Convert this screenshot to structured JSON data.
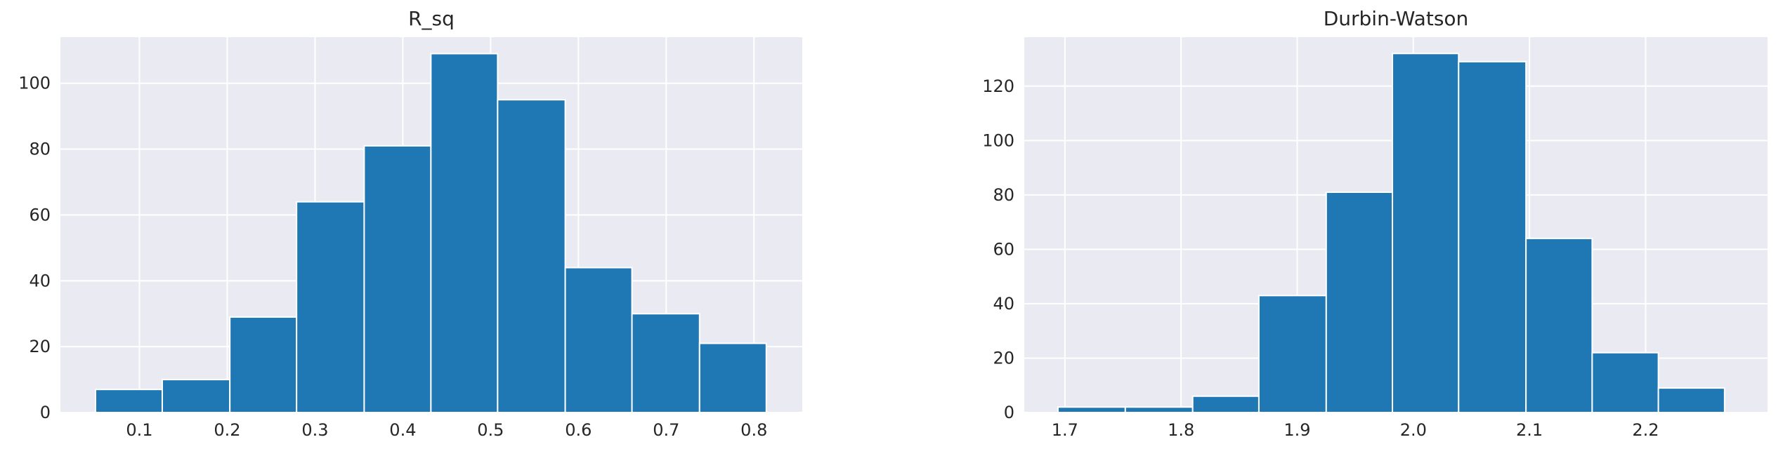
{
  "chart_data": [
    {
      "type": "bar",
      "title": "R_sq",
      "xlabel": "",
      "ylabel": "",
      "xlim": [
        0.01,
        0.855
      ],
      "ylim": [
        0,
        114
      ],
      "xticks": [
        0.1,
        0.2,
        0.3,
        0.4,
        0.5,
        0.6,
        0.7,
        0.8
      ],
      "xtick_labels": [
        "0.1",
        "0.2",
        "0.3",
        "0.4",
        "0.5",
        "0.6",
        "0.7",
        "0.8"
      ],
      "yticks": [
        0,
        20,
        40,
        60,
        80,
        100
      ],
      "ytick_labels": [
        "0",
        "20",
        "40",
        "60",
        "80",
        "100"
      ],
      "bin_edges": [
        0.05,
        0.126,
        0.203,
        0.279,
        0.356,
        0.432,
        0.508,
        0.585,
        0.661,
        0.738,
        0.814
      ],
      "counts": [
        7,
        10,
        29,
        64,
        81,
        109,
        95,
        44,
        30,
        21
      ],
      "bar_color": "#1f77b4",
      "grid": true,
      "background": "#eaeaf2"
    },
    {
      "type": "bar",
      "title": "Durbin-Watson",
      "xlabel": "",
      "ylabel": "",
      "xlim": [
        1.665,
        2.305
      ],
      "ylim": [
        0,
        138
      ],
      "xticks": [
        1.7,
        1.8,
        1.9,
        2.0,
        2.1,
        2.2
      ],
      "xtick_labels": [
        "1.7",
        "1.8",
        "1.9",
        "2.0",
        "2.1",
        "2.2"
      ],
      "yticks": [
        0,
        20,
        40,
        60,
        80,
        100,
        120
      ],
      "ytick_labels": [
        "0",
        "20",
        "40",
        "60",
        "80",
        "100",
        "120"
      ],
      "bin_edges": [
        1.694,
        1.752,
        1.81,
        1.867,
        1.925,
        1.982,
        2.039,
        2.097,
        2.154,
        2.211,
        2.268
      ],
      "counts": [
        2,
        2,
        6,
        43,
        81,
        132,
        129,
        64,
        22,
        9
      ],
      "bar_color": "#1f77b4",
      "grid": true,
      "background": "#eaeaf2"
    }
  ]
}
